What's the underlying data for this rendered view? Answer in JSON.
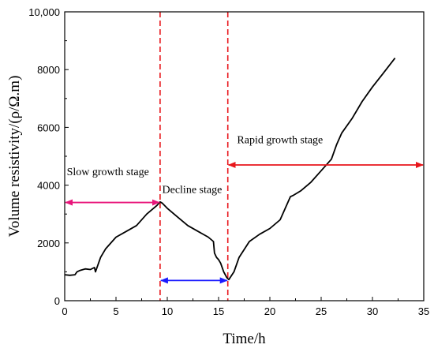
{
  "chart_data": {
    "type": "line",
    "xlabel": "Time/h",
    "ylabel": "Volume resistivity/(ρ/Ω.m)",
    "xlim": [
      0,
      35
    ],
    "ylim": [
      0,
      10000
    ],
    "xticks": [
      0,
      5,
      10,
      15,
      20,
      25,
      30,
      35
    ],
    "xtick_labels": [
      "0",
      "5",
      "10",
      "15",
      "20",
      "25",
      "30",
      "35"
    ],
    "yticks": [
      0,
      2000,
      4000,
      6000,
      8000,
      10000
    ],
    "ytick_labels": [
      "0",
      "2000",
      "4000",
      "6000",
      "8000",
      "10,000"
    ],
    "grid": false,
    "series": [
      {
        "color": "#000000",
        "x": [
          0,
          0.5,
          1,
          1.2,
          1.5,
          2.0,
          2.5,
          2.9,
          3.0,
          3.5,
          4.0,
          5.0,
          6.0,
          7.0,
          8.0,
          8.5,
          9.0,
          9.3,
          9.5,
          10.0,
          11.0,
          12.0,
          13.0,
          14.0,
          14.5,
          14.6,
          14.8,
          15.0,
          15.2,
          15.5,
          15.8,
          16.0,
          16.5,
          17.0,
          18.0,
          19.0,
          20.0,
          21.0,
          21.5,
          22.0,
          22.3,
          23.0,
          24.0,
          25.0,
          26.0,
          26.5,
          27.0,
          28.0,
          29.0,
          30.0,
          31.0,
          32.2
        ],
        "y": [
          900,
          880,
          900,
          1000,
          1050,
          1100,
          1080,
          1150,
          1000,
          1500,
          1800,
          2200,
          2400,
          2600,
          3000,
          3150,
          3300,
          3420,
          3380,
          3200,
          2900,
          2600,
          2400,
          2200,
          2050,
          1650,
          1500,
          1420,
          1300,
          1000,
          800,
          730,
          1000,
          1500,
          2050,
          2300,
          2500,
          2800,
          3200,
          3600,
          3650,
          3800,
          4100,
          4500,
          4900,
          5400,
          5800,
          6300,
          6900,
          7400,
          7850,
          8400
        ]
      }
    ],
    "dividers": [
      {
        "x": 9.3,
        "color": "#e8161b",
        "style": "dashed"
      },
      {
        "x": 15.9,
        "color": "#e8161b",
        "style": "dashed"
      }
    ],
    "stage_arrows": [
      {
        "x_start": 0,
        "x_end": 9.3,
        "y": 3400,
        "color": "#e8157a"
      },
      {
        "x_start": 9.3,
        "x_end": 15.9,
        "y": 700,
        "color": "#1a1aff"
      },
      {
        "x_start": 15.9,
        "x_end": 35,
        "y": 4700,
        "color": "#e8161b"
      }
    ],
    "annotations": [
      {
        "text": "Slow growth stage",
        "x": 0.2,
        "y": 4350
      },
      {
        "text": "Decline stage",
        "x": 9.5,
        "y": 3730
      },
      {
        "text": "Rapid growth stage",
        "x": 16.8,
        "y": 5450
      }
    ]
  }
}
